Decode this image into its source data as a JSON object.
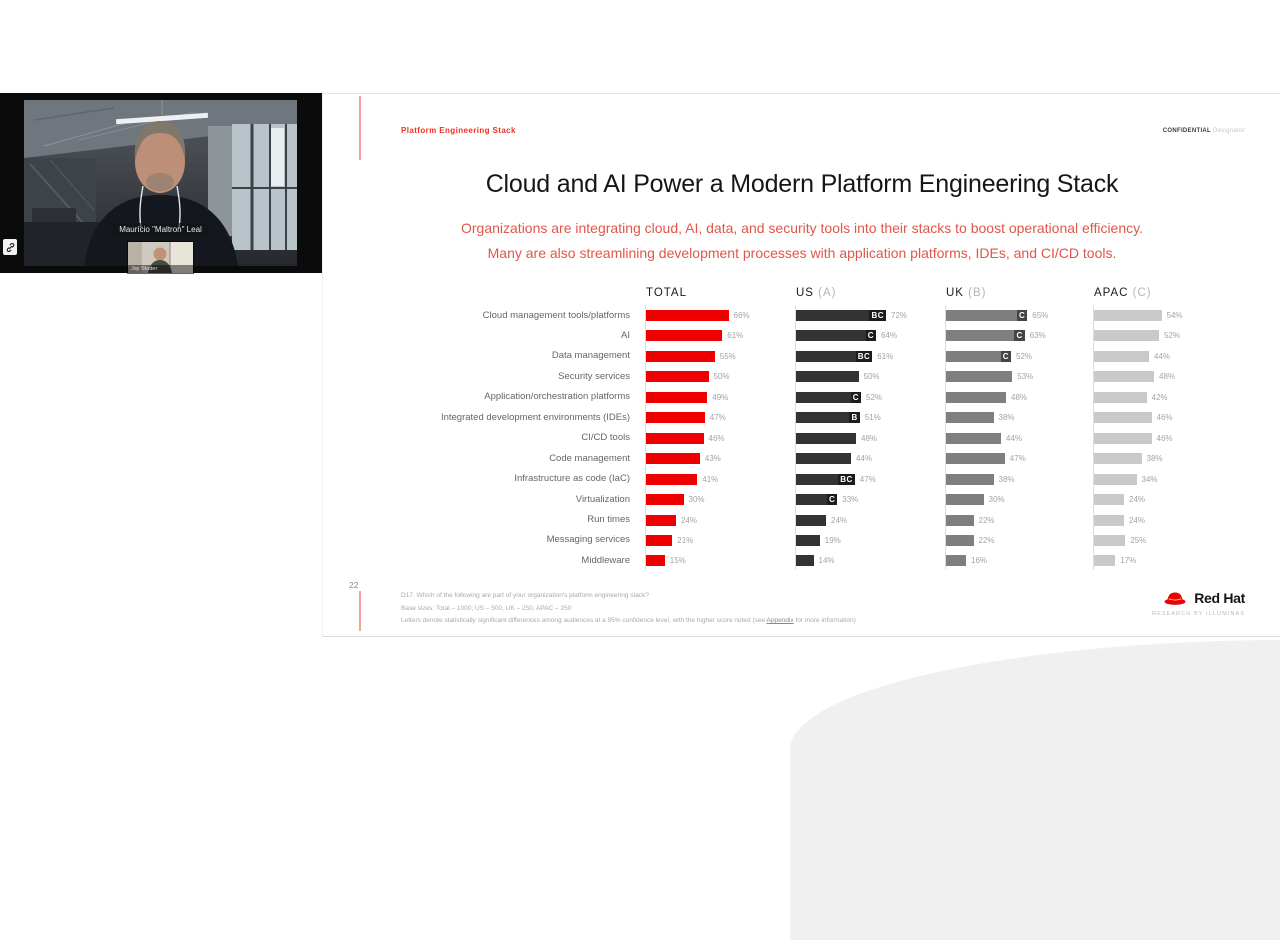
{
  "video_call": {
    "main_name": "Maurício \"Maltron\" Leal",
    "self_name": "Jay Studer"
  },
  "slide": {
    "kicker": "Platform Engineering Stack",
    "confidential_label": "CONFIDENTIAL",
    "confidential_designator": "Designator",
    "title": "Cloud and AI Power a Modern Platform Engineering Stack",
    "subtitle_line1": "Organizations are integrating cloud, AI, data, and security tools into their stacks to boost operational efficiency.",
    "subtitle_line2": "Many are also streamlining development processes with application platforms, IDEs, and CI/CD tools.",
    "page_number": "22",
    "footnote_question": "D17. Which of the following are part of your organization's platform engineering stack?",
    "footnote_base": "Base sizes: Total – 1000, US – 500, UK – 250, APAC – 250",
    "footnote_sig_pre": "Letters denote statistically significant differences among audiences at a 95% confidence level, with the higher score noted (see ",
    "footnote_sig_link": "Appendix",
    "footnote_sig_post": " for more information)",
    "brand": "Red Hat",
    "brand_sub": "RESEARCH BY ILLUMINAS",
    "colors": {
      "kicker_red": "#ee3124",
      "subtitle_red": "#e0564a",
      "rule_red": "#f4a494"
    }
  },
  "chart_data": {
    "type": "bar",
    "orientation": "horizontal",
    "value_suffix": "%",
    "axis_range": [
      0,
      100
    ],
    "grid": false,
    "legend_position": "column-headers",
    "categories": [
      "Cloud management tools/platforms",
      "AI",
      "Data management",
      "Security services",
      "Application/orchestration platforms",
      "Integrated development environments (IDEs)",
      "CI/CD tools",
      "Code management",
      "Infrastructure as code (IaC)",
      "Virtualization",
      "Run times",
      "Messaging services",
      "Middleware"
    ],
    "series": [
      {
        "name": "TOTAL",
        "group_letter": "",
        "color": "#ee0000",
        "values": [
          66,
          61,
          55,
          50,
          49,
          47,
          46,
          43,
          41,
          30,
          24,
          21,
          15
        ],
        "sig": [
          "",
          "",
          "",
          "",
          "",
          "",
          "",
          "",
          "",
          "",
          "",
          "",
          ""
        ]
      },
      {
        "name": "US",
        "group_letter": "(A)",
        "color": "#333333",
        "values": [
          72,
          64,
          61,
          50,
          52,
          51,
          48,
          44,
          47,
          33,
          24,
          19,
          14
        ],
        "sig": [
          "BC",
          "C",
          "BC",
          "",
          "C",
          "B",
          "",
          "",
          "BC",
          "C",
          "",
          "",
          ""
        ]
      },
      {
        "name": "UK",
        "group_letter": "(B)",
        "color": "#7f7f7f",
        "values": [
          65,
          63,
          52,
          53,
          48,
          38,
          44,
          47,
          38,
          30,
          22,
          22,
          16
        ],
        "sig": [
          "C",
          "C",
          "C",
          "",
          "",
          "",
          "",
          "",
          "",
          "",
          "",
          "",
          ""
        ]
      },
      {
        "name": "APAC",
        "group_letter": "(C)",
        "color": "#c9c9c9",
        "values": [
          54,
          52,
          44,
          48,
          42,
          46,
          46,
          38,
          34,
          24,
          24,
          25,
          17
        ],
        "sig": [
          "",
          "",
          "",
          "",
          "",
          "",
          "",
          "",
          "",
          "",
          "",
          "",
          ""
        ]
      }
    ]
  }
}
